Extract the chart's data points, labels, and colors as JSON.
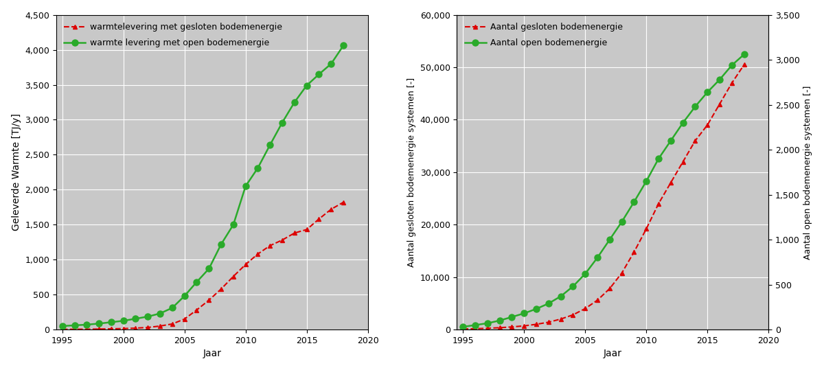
{
  "left": {
    "years_open": [
      1995,
      1996,
      1997,
      1998,
      1999,
      2000,
      2001,
      2002,
      2003,
      2004,
      2005,
      2006,
      2007,
      2008,
      2009,
      2010,
      2011,
      2012,
      2013,
      2014,
      2015,
      2016,
      2017,
      2018
    ],
    "values_open": [
      50,
      60,
      70,
      85,
      105,
      125,
      155,
      185,
      230,
      310,
      480,
      680,
      870,
      1220,
      1500,
      2050,
      2310,
      2640,
      2960,
      3250,
      3490,
      3650,
      3800,
      4060
    ],
    "years_gesloten": [
      1995,
      1996,
      1997,
      1998,
      1999,
      2000,
      2001,
      2002,
      2003,
      2004,
      2005,
      2006,
      2007,
      2008,
      2009,
      2010,
      2011,
      2012,
      2013,
      2014,
      2015,
      2016,
      2017,
      2018
    ],
    "values_gesloten": [
      3,
      4,
      5,
      7,
      10,
      14,
      20,
      30,
      50,
      80,
      150,
      280,
      420,
      580,
      760,
      930,
      1080,
      1200,
      1280,
      1380,
      1430,
      1580,
      1720,
      1820
    ],
    "ylabel": "Geleverde Warmte [TJ/y]",
    "xlabel": "Jaar",
    "ylim": [
      0,
      4500
    ],
    "xlim": [
      1994.5,
      2020
    ],
    "yticks": [
      0,
      500,
      1000,
      1500,
      2000,
      2500,
      3000,
      3500,
      4000,
      4500
    ],
    "xticks": [
      1995,
      2000,
      2005,
      2010,
      2015,
      2020
    ],
    "legend_gesloten": "warmtelevering met gesloten bodemenergie",
    "legend_open": "warmte levering met open bodemenergie"
  },
  "right": {
    "years_open": [
      1995,
      1996,
      1997,
      1998,
      1999,
      2000,
      2001,
      2002,
      2003,
      2004,
      2005,
      2006,
      2007,
      2008,
      2009,
      2010,
      2011,
      2012,
      2013,
      2014,
      2015,
      2016,
      2017,
      2018
    ],
    "values_open_right": [
      30,
      50,
      70,
      100,
      140,
      180,
      230,
      290,
      370,
      480,
      620,
      800,
      1000,
      1200,
      1420,
      1650,
      1900,
      2100,
      2300,
      2480,
      2640,
      2780,
      2940,
      3060
    ],
    "years_gesloten": [
      1995,
      1996,
      1997,
      1998,
      1999,
      2000,
      2001,
      2002,
      2003,
      2004,
      2005,
      2006,
      2007,
      2008,
      2009,
      2010,
      2011,
      2012,
      2013,
      2014,
      2015,
      2016,
      2017,
      2018
    ],
    "values_gesloten_left": [
      100,
      160,
      240,
      350,
      500,
      700,
      1000,
      1400,
      2000,
      2800,
      4000,
      5600,
      7800,
      10800,
      14800,
      19200,
      24000,
      28000,
      32000,
      36000,
      39000,
      43000,
      47000,
      50500
    ],
    "ylabel_left": "Aantal gesloten bodemenergie systemen [-]",
    "ylabel_right": "Aantal open bodemenergie systemen [-]",
    "xlabel": "Jaar",
    "ylim_left": [
      0,
      60000
    ],
    "ylim_right": [
      0,
      3500
    ],
    "xlim": [
      1994.5,
      2020
    ],
    "yticks_left": [
      0,
      10000,
      20000,
      30000,
      40000,
      50000,
      60000
    ],
    "yticks_right": [
      0,
      500,
      1000,
      1500,
      2000,
      2500,
      3000,
      3500
    ],
    "xticks": [
      1995,
      2000,
      2005,
      2010,
      2015,
      2020
    ],
    "legend_gesloten": "Aantal gesloten bodemenergie",
    "legend_open": "Aantal open bodemenergie"
  },
  "colors": {
    "open": "#2aaa2a",
    "gesloten": "#dd0000",
    "background": "#c8c8c8",
    "grid": "#ffffff"
  },
  "figsize": [
    12.0,
    5.39
  ],
  "dpi": 100
}
